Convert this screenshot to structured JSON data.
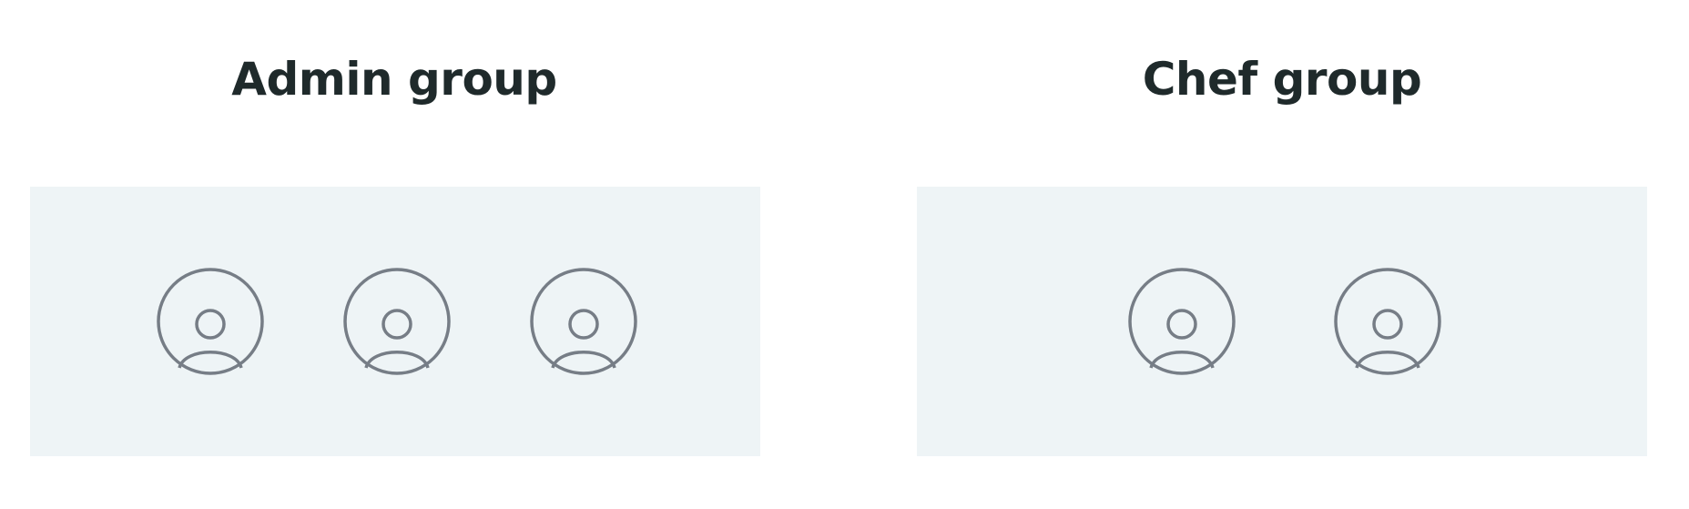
{
  "groups": [
    {
      "title": "Admin group",
      "members": 3
    },
    {
      "title": "Chef group",
      "members": 2
    }
  ],
  "icons": {
    "member": "user-icon"
  },
  "colors": {
    "panel_bg": "#eef4f6",
    "icon_stroke": "#767d86",
    "title_text": "#1f2a2b"
  }
}
